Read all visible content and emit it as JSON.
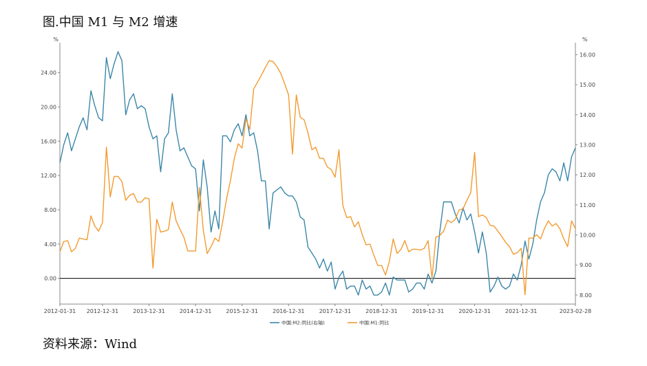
{
  "page": {
    "title": "图.中国 M1 与 M2 增速",
    "source": "资料来源：Wind"
  },
  "chart_data": {
    "type": "line",
    "left_axis_unit": "%",
    "right_axis_unit": "%",
    "left_ylim": [
      -3,
      27.5
    ],
    "right_ylim": [
      7.7,
      16.4
    ],
    "left_ticks": [
      "0.00",
      "4.00",
      "8.00",
      "12.00",
      "16.00",
      "20.00",
      "24.00"
    ],
    "right_ticks": [
      "8.00",
      "9.00",
      "10.00",
      "11.00",
      "12.00",
      "13.00",
      "14.00",
      "15.00",
      "16.00"
    ],
    "x_range": [
      "2012-01",
      "2023-02"
    ],
    "x_tick_labels": [
      "2012-01-31",
      "2012-12-31",
      "2013-12-31",
      "2014-12-31",
      "2015-12-31",
      "2016-12-31",
      "2017-12-31",
      "2018-12-31",
      "2019-12-31",
      "2020-12-31",
      "2021-12-31",
      "2023-02-28"
    ],
    "grid": false,
    "legend_position": "bottom",
    "series": [
      {
        "name": "中国:M2:同比(右轴)",
        "axis": "right",
        "color": "#3a86a8",
        "x": [
          "2012-01",
          "2012-02",
          "2012-03",
          "2012-04",
          "2012-05",
          "2012-06",
          "2012-07",
          "2012-08",
          "2012-09",
          "2012-10",
          "2012-11",
          "2012-12",
          "2013-01",
          "2013-02",
          "2013-03",
          "2013-04",
          "2013-05",
          "2013-06",
          "2013-07",
          "2013-08",
          "2013-09",
          "2013-10",
          "2013-11",
          "2013-12",
          "2014-01",
          "2014-02",
          "2014-03",
          "2014-04",
          "2014-05",
          "2014-06",
          "2014-07",
          "2014-08",
          "2014-09",
          "2014-10",
          "2014-11",
          "2014-12",
          "2015-01",
          "2015-02",
          "2015-03",
          "2015-04",
          "2015-05",
          "2015-06",
          "2015-07",
          "2015-08",
          "2015-09",
          "2015-10",
          "2015-11",
          "2015-12",
          "2016-01",
          "2016-02",
          "2016-03",
          "2016-04",
          "2016-05",
          "2016-06",
          "2016-07",
          "2016-08",
          "2016-09",
          "2016-10",
          "2016-11",
          "2016-12",
          "2017-01",
          "2017-02",
          "2017-03",
          "2017-04",
          "2017-05",
          "2017-06",
          "2017-07",
          "2017-08",
          "2017-09",
          "2017-10",
          "2017-11",
          "2017-12",
          "2018-01",
          "2018-02",
          "2018-03",
          "2018-04",
          "2018-05",
          "2018-06",
          "2018-07",
          "2018-08",
          "2018-09",
          "2018-10",
          "2018-11",
          "2018-12",
          "2019-01",
          "2019-02",
          "2019-03",
          "2019-04",
          "2019-05",
          "2019-06",
          "2019-07",
          "2019-08",
          "2019-09",
          "2019-10",
          "2019-11",
          "2019-12",
          "2020-01",
          "2020-02",
          "2020-03",
          "2020-04",
          "2020-05",
          "2020-06",
          "2020-07",
          "2020-08",
          "2020-09",
          "2020-10",
          "2020-11",
          "2020-12",
          "2021-01",
          "2021-02",
          "2021-03",
          "2021-04",
          "2021-05",
          "2021-06",
          "2021-07",
          "2021-08",
          "2021-09",
          "2021-10",
          "2021-11",
          "2021-12",
          "2022-01",
          "2022-02",
          "2022-03",
          "2022-04",
          "2022-05",
          "2022-06",
          "2022-07",
          "2022-08",
          "2022-09",
          "2022-10",
          "2022-11",
          "2022-12",
          "2023-01",
          "2023-02"
        ],
        "values": [
          12.4,
          13.0,
          13.4,
          12.8,
          13.2,
          13.6,
          13.9,
          13.5,
          14.8,
          14.3,
          13.9,
          13.8,
          15.9,
          15.2,
          15.7,
          16.1,
          15.8,
          14.0,
          14.5,
          14.7,
          14.2,
          14.3,
          14.2,
          13.6,
          13.2,
          13.3,
          12.1,
          13.2,
          13.4,
          14.7,
          13.5,
          12.8,
          12.9,
          12.6,
          12.3,
          12.2,
          10.8,
          12.5,
          11.6,
          10.1,
          10.8,
          10.2,
          13.3,
          13.3,
          13.1,
          13.5,
          13.7,
          13.3,
          14.0,
          13.3,
          13.4,
          12.8,
          11.8,
          11.8,
          10.2,
          11.4,
          11.5,
          11.6,
          11.4,
          11.3,
          11.3,
          11.1,
          10.6,
          10.5,
          9.6,
          9.4,
          9.2,
          8.9,
          9.2,
          8.8,
          9.1,
          8.2,
          8.6,
          8.8,
          8.2,
          8.3,
          8.3,
          8.0,
          8.5,
          8.2,
          8.3,
          8.0,
          8.0,
          8.1,
          8.4,
          8.0,
          8.6,
          8.5,
          8.5,
          8.5,
          8.1,
          8.2,
          8.4,
          8.4,
          8.2,
          8.7,
          8.4,
          8.8,
          10.1,
          11.1,
          11.1,
          11.1,
          10.7,
          10.4,
          10.9,
          10.5,
          10.7,
          10.1,
          9.4,
          10.1,
          9.4,
          8.1,
          8.3,
          8.6,
          8.3,
          8.2,
          8.3,
          8.7,
          8.5,
          9.0,
          9.8,
          9.2,
          9.7,
          10.5,
          11.1,
          11.4,
          12.0,
          12.2,
          12.1,
          11.8,
          12.4,
          11.8,
          12.6,
          12.9
        ],
        "_note": "values read off the right axis"
      },
      {
        "name": "中国:M1:同比",
        "axis": "left",
        "color": "#f39a2e",
        "x": [
          "2012-01",
          "2012-02",
          "2012-03",
          "2012-04",
          "2012-05",
          "2012-06",
          "2012-07",
          "2012-08",
          "2012-09",
          "2012-10",
          "2012-11",
          "2012-12",
          "2013-01",
          "2013-02",
          "2013-03",
          "2013-04",
          "2013-05",
          "2013-06",
          "2013-07",
          "2013-08",
          "2013-09",
          "2013-10",
          "2013-11",
          "2013-12",
          "2014-01",
          "2014-02",
          "2014-03",
          "2014-04",
          "2014-05",
          "2014-06",
          "2014-07",
          "2014-08",
          "2014-09",
          "2014-10",
          "2014-11",
          "2014-12",
          "2015-01",
          "2015-02",
          "2015-03",
          "2015-04",
          "2015-05",
          "2015-06",
          "2015-07",
          "2015-08",
          "2015-09",
          "2015-10",
          "2015-11",
          "2015-12",
          "2016-01",
          "2016-02",
          "2016-03",
          "2016-04",
          "2016-05",
          "2016-06",
          "2016-07",
          "2016-08",
          "2016-09",
          "2016-10",
          "2016-11",
          "2016-12",
          "2017-01",
          "2017-02",
          "2017-03",
          "2017-04",
          "2017-05",
          "2017-06",
          "2017-07",
          "2017-08",
          "2017-09",
          "2017-10",
          "2017-11",
          "2017-12",
          "2018-01",
          "2018-02",
          "2018-03",
          "2018-04",
          "2018-05",
          "2018-06",
          "2018-07",
          "2018-08",
          "2018-09",
          "2018-10",
          "2018-11",
          "2018-12",
          "2019-01",
          "2019-02",
          "2019-03",
          "2019-04",
          "2019-05",
          "2019-06",
          "2019-07",
          "2019-08",
          "2019-09",
          "2019-10",
          "2019-11",
          "2019-12",
          "2020-01",
          "2020-02",
          "2020-03",
          "2020-04",
          "2020-05",
          "2020-06",
          "2020-07",
          "2020-08",
          "2020-09",
          "2020-10",
          "2020-11",
          "2020-12",
          "2021-01",
          "2021-02",
          "2021-03",
          "2021-04",
          "2021-05",
          "2021-06",
          "2021-07",
          "2021-08",
          "2021-09",
          "2021-10",
          "2021-11",
          "2021-12",
          "2022-01",
          "2022-02",
          "2022-03",
          "2022-04",
          "2022-05",
          "2022-06",
          "2022-07",
          "2022-08",
          "2022-09",
          "2022-10",
          "2022-11",
          "2022-12",
          "2023-01",
          "2023-02"
        ],
        "values": [
          3.1,
          4.3,
          4.4,
          3.1,
          3.5,
          4.7,
          4.6,
          4.5,
          7.3,
          6.1,
          5.5,
          6.5,
          15.3,
          9.5,
          11.9,
          11.9,
          11.3,
          9.1,
          9.7,
          9.9,
          8.9,
          8.9,
          9.4,
          9.3,
          1.2,
          6.9,
          5.4,
          5.5,
          5.7,
          8.9,
          6.7,
          5.7,
          4.8,
          3.2,
          3.2,
          3.2,
          10.6,
          5.6,
          2.9,
          3.7,
          4.7,
          4.3,
          6.6,
          9.3,
          11.4,
          14.0,
          15.7,
          15.2,
          18.6,
          17.4,
          22.1,
          22.9,
          23.7,
          24.6,
          25.4,
          25.3,
          24.7,
          23.9,
          22.7,
          21.4,
          14.5,
          21.4,
          18.8,
          18.5,
          17.0,
          15.0,
          15.3,
          14.0,
          14.0,
          13.0,
          12.7,
          11.8,
          15.0,
          8.5,
          7.1,
          7.2,
          6.0,
          6.6,
          5.1,
          3.9,
          4.0,
          2.7,
          1.5,
          1.5,
          0.4,
          2.0,
          4.6,
          2.9,
          3.4,
          4.4,
          3.1,
          3.4,
          3.4,
          3.3,
          3.5,
          4.4,
          0.0,
          4.8,
          5.0,
          5.5,
          6.8,
          6.5,
          6.9,
          8.0,
          8.1,
          9.1,
          10.0,
          14.7,
          7.2,
          7.4,
          7.1,
          6.2,
          6.1,
          5.5,
          4.9,
          4.2,
          3.7,
          2.8,
          3.0,
          3.5,
          -1.9,
          4.7,
          4.7,
          5.1,
          4.6,
          5.8,
          6.7,
          6.1,
          6.4,
          5.8,
          4.6,
          3.7,
          6.7,
          5.8
        ],
        "_note": "values read off the left axis"
      }
    ]
  }
}
